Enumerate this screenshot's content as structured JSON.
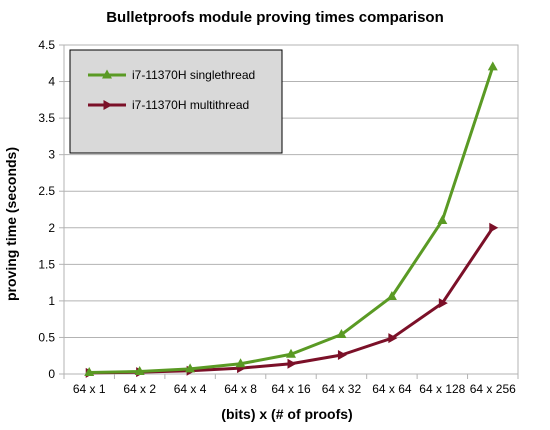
{
  "chart_data": {
    "type": "line",
    "title": "Bulletproofs module proving times comparison",
    "xlabel": "(bits) x (# of proofs)",
    "ylabel": "proving time (seconds)",
    "categories": [
      "64 x 1",
      "64 x 2",
      "64 x 4",
      "64 x 8",
      "64 x 16",
      "64 x 32",
      "64 x 64",
      "64 x 128",
      "64 x 256"
    ],
    "ylim": [
      0,
      4.5
    ],
    "yticks": [
      "0",
      "0.5",
      "1",
      "1.5",
      "2",
      "2.5",
      "3",
      "3.5",
      "4",
      "4.5"
    ],
    "grid": "horizontal",
    "legend_position": "top-left",
    "series": [
      {
        "name": "i7-11370H singlethread",
        "color": "#5a9a24",
        "marker": "triangle-up",
        "values": [
          0.02,
          0.035,
          0.07,
          0.14,
          0.27,
          0.54,
          1.06,
          2.1,
          4.2
        ]
      },
      {
        "name": "i7-11370H multithread",
        "color": "#7b1028",
        "marker": "triangle-right",
        "values": [
          0.015,
          0.025,
          0.045,
          0.08,
          0.14,
          0.26,
          0.49,
          0.97,
          2.0
        ]
      }
    ]
  }
}
